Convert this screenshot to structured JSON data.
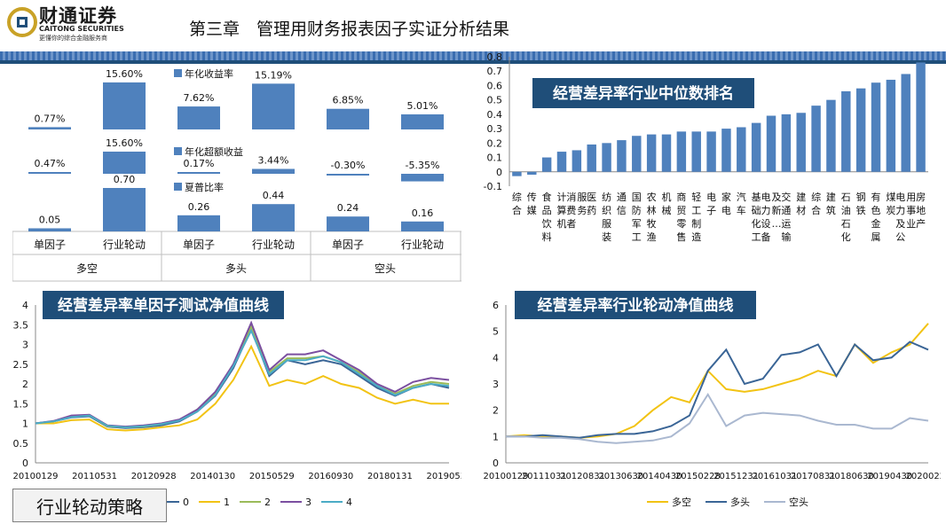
{
  "header": {
    "logo_name": "财通证券",
    "logo_en": "CAITONG SECURITIES",
    "logo_tagline": "更懂你的综合金融服务商",
    "title": "第三章　管理用财务报表因子实证分析结果"
  },
  "footer": {
    "label": "行业轮动策略"
  },
  "colors": {
    "bar": "#4f81bd",
    "title_box": "#1f4e79",
    "gold": "#f2c314",
    "navy": "#3a6596",
    "grey_blue": "#aab8d0",
    "purple": "#7b4fa0",
    "teal": "#4bacc6",
    "stripe": "#3a6db0"
  },
  "chart_data": [
    {
      "type": "bar",
      "categories": [
        "单因子",
        "行业轮动",
        "单因子",
        "行业轮动",
        "单因子",
        "行业轮动"
      ],
      "groups": [
        "多空",
        "多头",
        "空头"
      ],
      "series": [
        {
          "name": "年化收益率",
          "values": [
            0.77,
            15.6,
            7.62,
            15.19,
            6.85,
            5.01
          ],
          "labels": [
            "0.77%",
            "15.60%",
            "7.62%",
            "15.19%",
            "6.85%",
            "5.01%"
          ]
        },
        {
          "name": "年化超额收益",
          "values": [
            0.47,
            15.6,
            0.17,
            3.44,
            -0.3,
            -5.35
          ],
          "labels": [
            "0.47%",
            "15.60%",
            "0.17%",
            "3.44%",
            "-0.30%",
            "-5.35%"
          ]
        },
        {
          "name": "夏普比率",
          "values": [
            0.05,
            0.7,
            0.26,
            0.44,
            0.24,
            0.16
          ],
          "labels": [
            "0.05",
            "0.70",
            "0.26",
            "0.44",
            "0.24",
            "0.16"
          ]
        }
      ]
    },
    {
      "type": "bar",
      "title": "经营差异率行业中位数排名",
      "categories": [
        "综合",
        "传媒",
        "食品饮料",
        "计算机",
        "消费者服务",
        "医药",
        "纺织服装",
        "通信",
        "国防军工",
        "农林牧渔",
        "机械",
        "商贸零售",
        "轻工制造",
        "电子",
        "家电",
        "汽车",
        "基础化工",
        "电力设备及新…",
        "交通运输",
        "建材",
        "综合",
        "建筑",
        "石油石化",
        "钢铁",
        "有色金属",
        "煤炭",
        "电力及公用事业",
        "房地产"
      ],
      "values": [
        -0.03,
        -0.02,
        0.1,
        0.14,
        0.15,
        0.19,
        0.2,
        0.22,
        0.25,
        0.26,
        0.26,
        0.28,
        0.28,
        0.28,
        0.3,
        0.31,
        0.34,
        0.39,
        0.4,
        0.41,
        0.46,
        0.5,
        0.56,
        0.58,
        0.62,
        0.64,
        0.68,
        0.76
      ],
      "ylim": [
        -0.1,
        0.8
      ],
      "yticks": [
        "-0.1",
        "0",
        "0.1",
        "0.2",
        "0.3",
        "0.4",
        "0.5",
        "0.6",
        "0.7",
        "0.8"
      ]
    },
    {
      "type": "line",
      "title": "经营差异率单因子测试净值曲线",
      "ylim": [
        0,
        4
      ],
      "yticks": [
        "0",
        "0.5",
        "1",
        "1.5",
        "2",
        "2.5",
        "3",
        "3.5",
        "4"
      ],
      "xticks": [
        "20100129",
        "20110531",
        "20120928",
        "20140130",
        "20150529",
        "20160930",
        "20180131",
        "20190531"
      ],
      "x": [
        "2010-01",
        "2010-06",
        "2011-01",
        "2011-06",
        "2012-01",
        "2012-06",
        "2013-01",
        "2013-06",
        "2014-01",
        "2014-06",
        "2014-12",
        "2015-03",
        "2015-06",
        "2015-09",
        "2015-12",
        "2016-06",
        "2017-01",
        "2017-06",
        "2018-01",
        "2018-06",
        "2019-01",
        "2019-06",
        "2020-01",
        "2020-06"
      ],
      "series": [
        {
          "name": "0",
          "values": [
            1.0,
            1.05,
            1.15,
            1.18,
            0.92,
            0.88,
            0.9,
            0.95,
            1.05,
            1.3,
            1.7,
            2.4,
            3.4,
            2.2,
            2.6,
            2.5,
            2.6,
            2.5,
            2.2,
            1.9,
            1.7,
            1.9,
            2.0,
            1.9
          ]
        },
        {
          "name": "1",
          "values": [
            1.0,
            1.0,
            1.08,
            1.1,
            0.85,
            0.82,
            0.85,
            0.9,
            0.95,
            1.1,
            1.5,
            2.1,
            2.95,
            1.95,
            2.1,
            2.0,
            2.2,
            2.0,
            1.9,
            1.65,
            1.5,
            1.6,
            1.5,
            1.5
          ]
        },
        {
          "name": "2",
          "values": [
            1.0,
            1.05,
            1.18,
            1.2,
            0.93,
            0.9,
            0.92,
            0.98,
            1.08,
            1.35,
            1.75,
            2.5,
            3.45,
            2.3,
            2.65,
            2.65,
            2.7,
            2.55,
            2.3,
            1.95,
            1.75,
            1.95,
            2.05,
            2.0
          ]
        },
        {
          "name": "3",
          "values": [
            1.0,
            1.06,
            1.2,
            1.22,
            0.95,
            0.92,
            0.95,
            1.0,
            1.1,
            1.35,
            1.8,
            2.5,
            3.55,
            2.35,
            2.75,
            2.75,
            2.85,
            2.6,
            2.35,
            2.0,
            1.8,
            2.05,
            2.15,
            2.1
          ]
        },
        {
          "name": "4",
          "values": [
            1.0,
            1.05,
            1.16,
            1.2,
            0.94,
            0.9,
            0.93,
            0.98,
            1.07,
            1.3,
            1.72,
            2.45,
            3.35,
            2.25,
            2.6,
            2.6,
            2.7,
            2.55,
            2.25,
            1.95,
            1.72,
            1.9,
            2.0,
            1.95
          ]
        }
      ]
    },
    {
      "type": "line",
      "title": "经营差异率行业轮动净值曲线",
      "ylim": [
        0,
        6
      ],
      "yticks": [
        "0",
        "1",
        "2",
        "3",
        "4",
        "5",
        "6"
      ],
      "xticks": [
        "20100129",
        "20111031",
        "20120831",
        "20130630",
        "20140430",
        "20150228",
        "20151231",
        "20161031",
        "20170831",
        "20180630",
        "20190430",
        "20200228"
      ],
      "x": [
        "2010-01",
        "2010-06",
        "2011-01",
        "2011-06",
        "2012-01",
        "2012-06",
        "2013-01",
        "2013-06",
        "2014-01",
        "2014-06",
        "2014-12",
        "2015-03",
        "2015-06",
        "2015-09",
        "2015-12",
        "2016-06",
        "2017-01",
        "2017-06",
        "2018-01",
        "2018-06",
        "2019-01",
        "2019-06",
        "2020-01",
        "2020-06"
      ],
      "series": [
        {
          "name": "多空",
          "values": [
            1.0,
            1.05,
            1.0,
            1.0,
            0.95,
            1.0,
            1.1,
            1.4,
            2.0,
            2.5,
            2.3,
            3.5,
            2.8,
            2.7,
            2.8,
            3.0,
            3.2,
            3.5,
            3.3,
            4.5,
            3.8,
            4.2,
            4.5,
            5.3
          ]
        },
        {
          "name": "多头",
          "values": [
            1.0,
            1.0,
            1.05,
            1.0,
            0.95,
            1.05,
            1.1,
            1.1,
            1.2,
            1.4,
            1.8,
            3.5,
            4.3,
            3.0,
            3.2,
            4.1,
            4.2,
            4.5,
            3.3,
            4.5,
            3.9,
            4.0,
            4.6,
            4.3
          ]
        },
        {
          "name": "空头",
          "values": [
            1.0,
            1.0,
            0.95,
            0.95,
            0.9,
            0.8,
            0.75,
            0.8,
            0.85,
            1.0,
            1.5,
            2.6,
            1.4,
            1.8,
            1.9,
            1.85,
            1.8,
            1.6,
            1.45,
            1.45,
            1.3,
            1.3,
            1.7,
            1.6
          ]
        }
      ]
    }
  ]
}
